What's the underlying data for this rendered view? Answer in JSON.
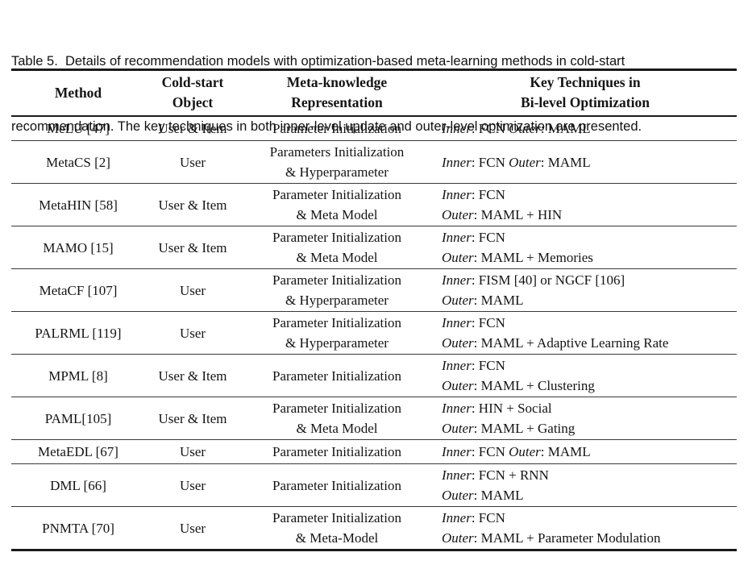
{
  "caption_lines": [
    "Table 5.  Details of recommendation models with optimization-based meta-learning methods in cold-start",
    "recommendation. The key techniques in both inner-level update and outer-level optimization are presented."
  ],
  "table": {
    "header": {
      "method": [
        "Method"
      ],
      "cold_start_object": [
        "Cold-start",
        "Object"
      ],
      "meta_knowledge": [
        "Meta-knowledge",
        "Representation"
      ],
      "key_techniques": [
        "Key Techniques in",
        "Bi-level Optimization"
      ]
    },
    "rows": [
      {
        "height": 31,
        "method": "MeLU [47]",
        "cold_start_object": "User & Item",
        "representation": [
          "Parameter Initialization"
        ],
        "techniques": [
          [
            {
              "i": true,
              "t": "Inner"
            },
            {
              "t": ": FCN "
            },
            {
              "i": true,
              "t": "Outer"
            },
            {
              "t": ": MAML"
            }
          ]
        ]
      },
      {
        "height": 53,
        "method": "MetaCS [2]",
        "cold_start_object": "User",
        "representation": [
          "Parameters Initialization",
          "& Hyperparameter"
        ],
        "techniques": [
          [
            {
              "i": true,
              "t": "Inner"
            },
            {
              "t": ": FCN "
            },
            {
              "i": true,
              "t": "Outer"
            },
            {
              "t": ": MAML"
            }
          ]
        ]
      },
      {
        "height": 53,
        "method": "MetaHIN [58]",
        "cold_start_object": "User & Item",
        "representation": [
          "Parameter Initialization",
          "& Meta Model"
        ],
        "techniques": [
          [
            {
              "i": true,
              "t": "Inner"
            },
            {
              "t": ": FCN"
            }
          ],
          [
            {
              "i": true,
              "t": "Outer"
            },
            {
              "t": ": MAML + HIN"
            }
          ]
        ]
      },
      {
        "height": 53,
        "method": "MAMO [15]",
        "cold_start_object": "User & Item",
        "representation": [
          "Parameter Initialization",
          "& Meta Model"
        ],
        "techniques": [
          [
            {
              "i": true,
              "t": "Inner"
            },
            {
              "t": ": FCN"
            }
          ],
          [
            {
              "i": true,
              "t": "Outer"
            },
            {
              "t": ": MAML + Memories"
            }
          ]
        ]
      },
      {
        "height": 53,
        "method": "MetaCF [107]",
        "cold_start_object": "User",
        "representation": [
          "Parameter Initialization",
          "& Hyperparameter"
        ],
        "techniques": [
          [
            {
              "i": true,
              "t": "Inner"
            },
            {
              "t": ": FISM [40] or NGCF [106]"
            }
          ],
          [
            {
              "i": true,
              "t": "Outer"
            },
            {
              "t": ": MAML"
            }
          ]
        ]
      },
      {
        "height": 53,
        "method": "PALRML [119]",
        "cold_start_object": "User",
        "representation": [
          "Parameter Initialization",
          "& Hyperparameter"
        ],
        "techniques": [
          [
            {
              "i": true,
              "t": "Inner"
            },
            {
              "t": ": FCN"
            }
          ],
          [
            {
              "i": true,
              "t": "Outer"
            },
            {
              "t": ": MAML + Adaptive Learning Rate"
            }
          ]
        ]
      },
      {
        "height": 53,
        "method": "MPML [8]",
        "cold_start_object": "User & Item",
        "representation": [
          "Parameter Initialization"
        ],
        "techniques": [
          [
            {
              "i": true,
              "t": "Inner"
            },
            {
              "t": ": FCN"
            }
          ],
          [
            {
              "i": true,
              "t": "Outer"
            },
            {
              "t": ": MAML + Clustering"
            }
          ]
        ]
      },
      {
        "height": 53,
        "method": "PAML[105]",
        "cold_start_object": "User & Item",
        "representation": [
          "Parameter Initialization",
          "& Meta Model"
        ],
        "techniques": [
          [
            {
              "i": true,
              "t": "Inner"
            },
            {
              "t": ": HIN + Social"
            }
          ],
          [
            {
              "i": true,
              "t": "Outer"
            },
            {
              "t": ": MAML + Gating"
            }
          ]
        ]
      },
      {
        "height": 30,
        "method": "MetaEDL [67]",
        "cold_start_object": "User",
        "representation": [
          "Parameter Initialization"
        ],
        "techniques": [
          [
            {
              "i": true,
              "t": "Inner"
            },
            {
              "t": ": FCN "
            },
            {
              "i": true,
              "t": "Outer"
            },
            {
              "t": ": MAML"
            }
          ]
        ]
      },
      {
        "height": 53,
        "method": "DML [66]",
        "cold_start_object": "User",
        "representation": [
          "Parameter Initialization"
        ],
        "techniques": [
          [
            {
              "i": true,
              "t": "Inner"
            },
            {
              "t": ": FCN + RNN"
            }
          ],
          [
            {
              "i": true,
              "t": "Outer"
            },
            {
              "t": ": MAML"
            }
          ]
        ]
      },
      {
        "height": 52,
        "method": "PNMTA [70]",
        "cold_start_object": "User",
        "representation": [
          "Parameter Initialization",
          "& Meta-Model"
        ],
        "techniques": [
          [
            {
              "i": true,
              "t": "Inner"
            },
            {
              "t": ": FCN"
            }
          ],
          [
            {
              "i": true,
              "t": "Outer"
            },
            {
              "t": ": MAML + Parameter Modulation"
            }
          ]
        ]
      }
    ]
  }
}
